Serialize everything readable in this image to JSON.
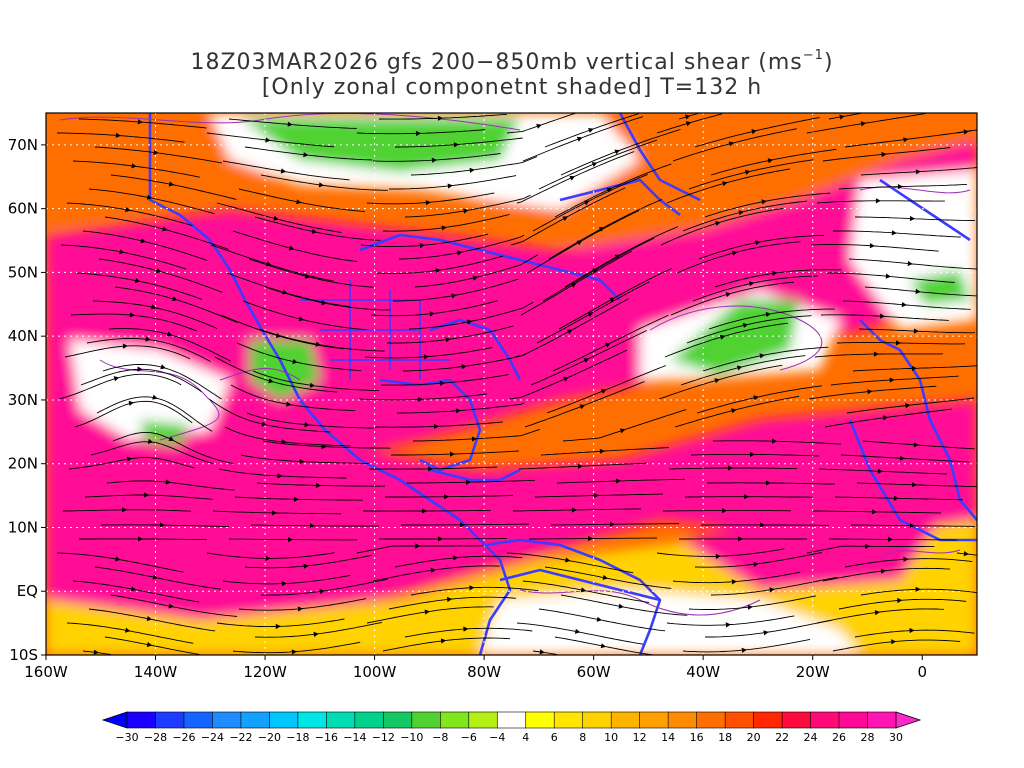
{
  "title": {
    "line1_prefix": "18Z03MAR2026 gfs 200−850mb vertical shear (ms",
    "line1_sup": "−1",
    "line1_suffix": ")",
    "line2": "[Only zonal componetnt shaded] T=132 h"
  },
  "axes": {
    "lon_labels": [
      "160W",
      "140W",
      "120W",
      "100W",
      "80W",
      "60W",
      "40W",
      "20W",
      "0"
    ],
    "lat_labels": [
      "70N",
      "60N",
      "50N",
      "40N",
      "30N",
      "20N",
      "10N",
      "EQ",
      "10S"
    ]
  },
  "colorbar": {
    "labels": [
      "−30",
      "−28",
      "−26",
      "−24",
      "−22",
      "−20",
      "−18",
      "−16",
      "−14",
      "−12",
      "−10",
      "−8",
      "−6",
      "−4",
      "4",
      "6",
      "8",
      "10",
      "12",
      "14",
      "16",
      "18",
      "20",
      "22",
      "24",
      "26",
      "28",
      "30"
    ],
    "colors": [
      "#1a00ff",
      "#1e3cff",
      "#1464ff",
      "#1e8cff",
      "#14a0ff",
      "#00c8ff",
      "#00e6e6",
      "#00dcb4",
      "#00d28c",
      "#14c864",
      "#50d232",
      "#82e61e",
      "#b4f014",
      "#ffffff",
      "#ffff00",
      "#ffe600",
      "#ffd200",
      "#ffb400",
      "#ffa000",
      "#ff8c00",
      "#ff6e00",
      "#ff5000",
      "#ff2800",
      "#ff0a3c",
      "#ff0a78",
      "#ff0a96",
      "#ff14b4"
    ],
    "left_end_color": "#0000ff",
    "right_end_color": "#ff28c8"
  },
  "map_colors": {
    "shear_high": "#ff0a96",
    "shear_mid": "#ff6e00",
    "shear_low": "#ffd200",
    "weak": "#ffffff",
    "negative": "#50d232",
    "coast": "#3c3cff",
    "streamline": "#000000",
    "contour": "#9b30b4"
  }
}
